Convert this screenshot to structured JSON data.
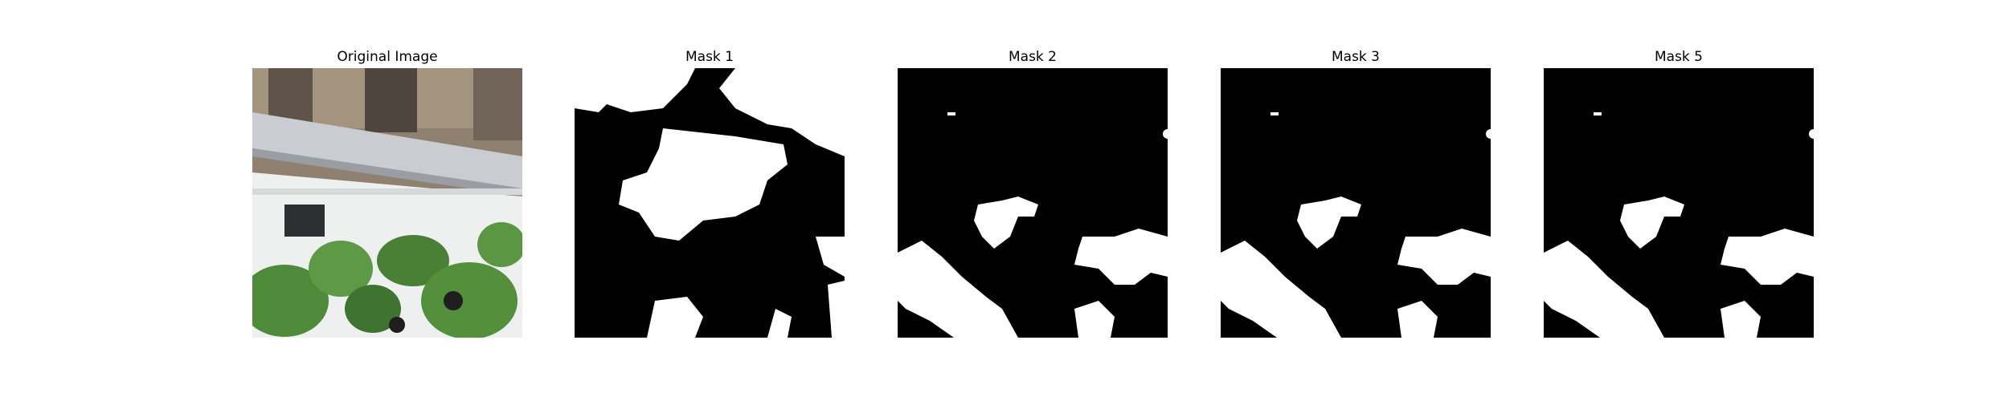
{
  "figure": {
    "panels": [
      {
        "id": "original",
        "title": "Original Image",
        "kind": "photo"
      },
      {
        "id": "mask-1",
        "title": "Mask 1",
        "kind": "mask"
      },
      {
        "id": "mask-2",
        "title": "Mask 2",
        "kind": "mask"
      },
      {
        "id": "mask-3",
        "title": "Mask 3",
        "kind": "mask"
      },
      {
        "id": "mask-5",
        "title": "Mask 5",
        "kind": "mask"
      }
    ]
  },
  "colors": {
    "mask_background": "#000000",
    "mask_foreground": "#ffffff",
    "leaf_green": "#4f8a3a",
    "rail_gray": "#c9ccd0",
    "wall_white": "#eef0f0",
    "ground_brown": "#8a7a66"
  }
}
